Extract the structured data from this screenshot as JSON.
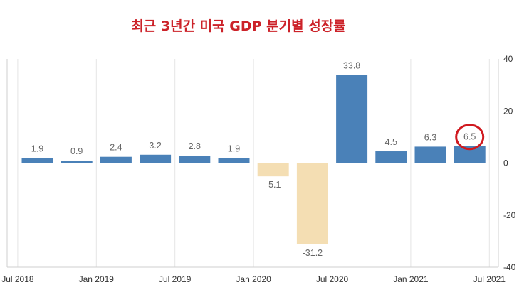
{
  "chart_data": {
    "type": "bar",
    "title": "최근 3년간 미국 GDP 분기별 성장률",
    "xlabel": "",
    "ylabel": "",
    "ylim": [
      -40,
      40
    ],
    "yticks": [
      "40",
      "20",
      "0",
      "-20",
      "-40"
    ],
    "xtick_labels": [
      "Jul 2018",
      "Jan 2019",
      "Jul 2019",
      "Jan 2020",
      "Jul 2020",
      "Jan 2021",
      "Jul 2021"
    ],
    "categories": [
      "2018 Q3",
      "2018 Q4",
      "2019 Q1",
      "2019 Q2",
      "2019 Q3",
      "2019 Q4",
      "2020 Q1",
      "2020 Q2",
      "2020 Q3",
      "2020 Q4",
      "2021 Q1",
      "2021 Q2"
    ],
    "values": [
      1.9,
      0.9,
      2.4,
      3.2,
      2.8,
      1.9,
      -5.1,
      -31.2,
      33.8,
      4.5,
      6.3,
      6.5
    ],
    "value_labels": [
      "1.9",
      "0.9",
      "2.4",
      "3.2",
      "2.8",
      "1.9",
      "-5.1",
      "-31.2",
      "33.8",
      "4.5",
      "6.3",
      "6.5"
    ],
    "grid": "vertical",
    "y_axis_position": "right",
    "highlight_index": 11
  },
  "colors": {
    "title": "#cc2229",
    "positive": "#4a81b8",
    "negative": "#f4deb3",
    "highlight_circle": "#d0191f",
    "grid": "#e4e4e4",
    "axis": "#cfcfcf"
  }
}
